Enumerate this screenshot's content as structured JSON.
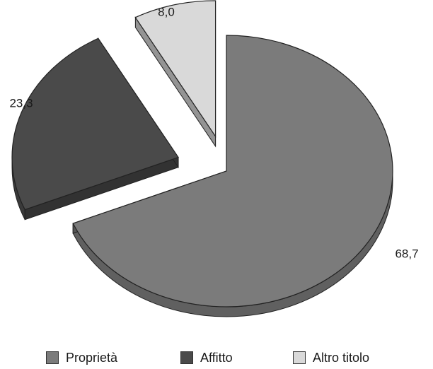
{
  "chart_data": {
    "type": "pie",
    "style": "3d-exploded",
    "categories": [
      "Proprietà",
      "Affitto",
      "Altro titolo"
    ],
    "values": [
      68.7,
      23.3,
      8.0
    ],
    "data_labels": [
      "68,7",
      "23,3",
      "8,0"
    ],
    "colors": [
      "#7b7b7b",
      "#4a4a4a",
      "#d9d9d9"
    ],
    "legend_position": "bottom"
  }
}
